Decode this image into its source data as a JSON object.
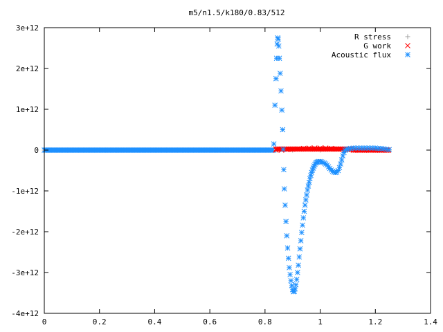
{
  "chart_data": {
    "type": "scatter",
    "title": "m5/n1.5/k180/0.83/512",
    "xlabel": "",
    "ylabel": "",
    "xlim": [
      0,
      1.4
    ],
    "ylim": [
      -4000000000000.0,
      3000000000000.0
    ],
    "x_ticks": [
      {
        "value": 0,
        "label": "0"
      },
      {
        "value": 0.2,
        "label": "0.2"
      },
      {
        "value": 0.4,
        "label": "0.4"
      },
      {
        "value": 0.6,
        "label": "0.6"
      },
      {
        "value": 0.8,
        "label": "0.8"
      },
      {
        "value": 1.0,
        "label": "1"
      },
      {
        "value": 1.2,
        "label": "1.2"
      },
      {
        "value": 1.4,
        "label": "1.4"
      }
    ],
    "y_ticks": [
      {
        "value": 3000000000000.0,
        "label": "3e+12"
      },
      {
        "value": 2000000000000.0,
        "label": "2e+12"
      },
      {
        "value": 1000000000000.0,
        "label": "1e+12"
      },
      {
        "value": 0,
        "label": "0"
      },
      {
        "value": -1000000000000.0,
        "label": "-1e+12"
      },
      {
        "value": -2000000000000.0,
        "label": "-2e+12"
      },
      {
        "value": -3000000000000.0,
        "label": "-3e+12"
      },
      {
        "value": -4000000000000.0,
        "label": "-4e+12"
      }
    ],
    "grid": false,
    "legend": "top-right",
    "series": [
      {
        "name": "R stress",
        "marker": "plus",
        "color": "#a0a0a0",
        "x_range": [
          0,
          1.25
        ],
        "points": [
          [
            0,
            0
          ],
          [
            0.84,
            0
          ],
          [
            0.9,
            0
          ],
          [
            1.0,
            0
          ],
          [
            1.1,
            0
          ],
          [
            1.2,
            0
          ],
          [
            1.25,
            0
          ]
        ]
      },
      {
        "name": "G work",
        "marker": "cross",
        "color": "#ff0000",
        "points": [
          [
            0.84,
            0
          ],
          [
            0.86,
            0
          ],
          [
            0.88,
            10000000000.0
          ],
          [
            0.9,
            20000000000.0
          ],
          [
            0.92,
            30000000000.0
          ],
          [
            0.94,
            40000000000.0
          ],
          [
            0.96,
            50000000000.0
          ],
          [
            0.98,
            50000000000.0
          ],
          [
            1.0,
            50000000000.0
          ],
          [
            1.02,
            50000000000.0
          ],
          [
            1.04,
            40000000000.0
          ],
          [
            1.06,
            30000000000.0
          ],
          [
            1.08,
            20000000000.0
          ],
          [
            1.1,
            10000000000.0
          ],
          [
            1.12,
            10000000000.0
          ],
          [
            1.14,
            0
          ],
          [
            1.16,
            0
          ],
          [
            1.18,
            0
          ],
          [
            1.2,
            0
          ],
          [
            1.22,
            0
          ],
          [
            1.24,
            0
          ]
        ]
      },
      {
        "name": "Acoustic flux",
        "marker": "star",
        "color": "#1e90ff",
        "points": [
          [
            0.832,
            150000000000.0
          ],
          [
            0.836,
            1100000000000.0
          ],
          [
            0.84,
            1750000000000.0
          ],
          [
            0.842,
            2250000000000.0
          ],
          [
            0.844,
            2600000000000.0
          ],
          [
            0.846,
            2750000000000.0
          ],
          [
            0.848,
            2720000000000.0
          ],
          [
            0.85,
            2550000000000.0
          ],
          [
            0.852,
            2250000000000.0
          ],
          [
            0.855,
            1880000000000.0
          ],
          [
            0.858,
            1450000000000.0
          ],
          [
            0.861,
            980000000000.0
          ],
          [
            0.864,
            500000000000.0
          ],
          [
            0.866,
            20000000000.0
          ],
          [
            0.868,
            -480000000000.0
          ],
          [
            0.87,
            -950000000000.0
          ],
          [
            0.873,
            -1350000000000.0
          ],
          [
            0.876,
            -1750000000000.0
          ],
          [
            0.879,
            -2100000000000.0
          ],
          [
            0.882,
            -2400000000000.0
          ],
          [
            0.885,
            -2650000000000.0
          ],
          [
            0.888,
            -2880000000000.0
          ],
          [
            0.891,
            -3050000000000.0
          ],
          [
            0.894,
            -3200000000000.0
          ],
          [
            0.897,
            -3320000000000.0
          ],
          [
            0.9,
            -3420000000000.0
          ],
          [
            0.903,
            -3470000000000.0
          ],
          [
            0.906,
            -3460000000000.0
          ],
          [
            0.909,
            -3400000000000.0
          ],
          [
            0.912,
            -3300000000000.0
          ],
          [
            0.915,
            -3170000000000.0
          ],
          [
            0.918,
            -3000000000000.0
          ],
          [
            0.921,
            -2820000000000.0
          ],
          [
            0.924,
            -2620000000000.0
          ],
          [
            0.927,
            -2420000000000.0
          ],
          [
            0.93,
            -2220000000000.0
          ],
          [
            0.933,
            -2020000000000.0
          ],
          [
            0.936,
            -1840000000000.0
          ],
          [
            0.939,
            -1660000000000.0
          ],
          [
            0.942,
            -1500000000000.0
          ],
          [
            0.945,
            -1350000000000.0
          ],
          [
            0.948,
            -1220000000000.0
          ],
          [
            0.951,
            -1100000000000.0
          ],
          [
            0.954,
            -980000000000.0
          ],
          [
            0.957,
            -880000000000.0
          ],
          [
            0.96,
            -790000000000.0
          ],
          [
            0.963,
            -700000000000.0
          ],
          [
            0.966,
            -620000000000.0
          ],
          [
            0.969,
            -550000000000.0
          ],
          [
            0.972,
            -490000000000.0
          ],
          [
            0.975,
            -440000000000.0
          ],
          [
            0.978,
            -390000000000.0
          ],
          [
            0.981,
            -350000000000.0
          ],
          [
            0.984,
            -320000000000.0
          ],
          [
            0.987,
            -300000000000.0
          ],
          [
            0.99,
            -290000000000.0
          ],
          [
            0.995,
            -280000000000.0
          ],
          [
            1.0,
            -280000000000.0
          ],
          [
            1.005,
            -290000000000.0
          ],
          [
            1.01,
            -300000000000.0
          ],
          [
            1.015,
            -320000000000.0
          ],
          [
            1.02,
            -340000000000.0
          ],
          [
            1.025,
            -370000000000.0
          ],
          [
            1.03,
            -410000000000.0
          ],
          [
            1.035,
            -450000000000.0
          ],
          [
            1.04,
            -490000000000.0
          ],
          [
            1.045,
            -520000000000.0
          ],
          [
            1.05,
            -540000000000.0
          ],
          [
            1.055,
            -550000000000.0
          ],
          [
            1.06,
            -540000000000.0
          ],
          [
            1.065,
            -500000000000.0
          ],
          [
            1.07,
            -430000000000.0
          ],
          [
            1.074,
            -340000000000.0
          ],
          [
            1.078,
            -240000000000.0
          ],
          [
            1.082,
            -140000000000.0
          ],
          [
            1.086,
            -60000000000.0
          ],
          [
            1.09,
            0.0
          ],
          [
            1.095,
            20000000000.0
          ],
          [
            1.1,
            30000000000.0
          ],
          [
            1.11,
            40000000000.0
          ],
          [
            1.12,
            50000000000.0
          ],
          [
            1.13,
            50000000000.0
          ],
          [
            1.14,
            50000000000.0
          ],
          [
            1.15,
            50000000000.0
          ],
          [
            1.16,
            50000000000.0
          ],
          [
            1.17,
            50000000000.0
          ],
          [
            1.18,
            50000000000.0
          ],
          [
            1.19,
            50000000000.0
          ],
          [
            1.2,
            50000000000.0
          ],
          [
            1.21,
            40000000000.0
          ],
          [
            1.22,
            40000000000.0
          ],
          [
            1.23,
            30000000000.0
          ],
          [
            1.24,
            20000000000.0
          ],
          [
            1.25,
            10000000000.0
          ]
        ],
        "zero_band": [
          0,
          0.83
        ]
      }
    ]
  }
}
